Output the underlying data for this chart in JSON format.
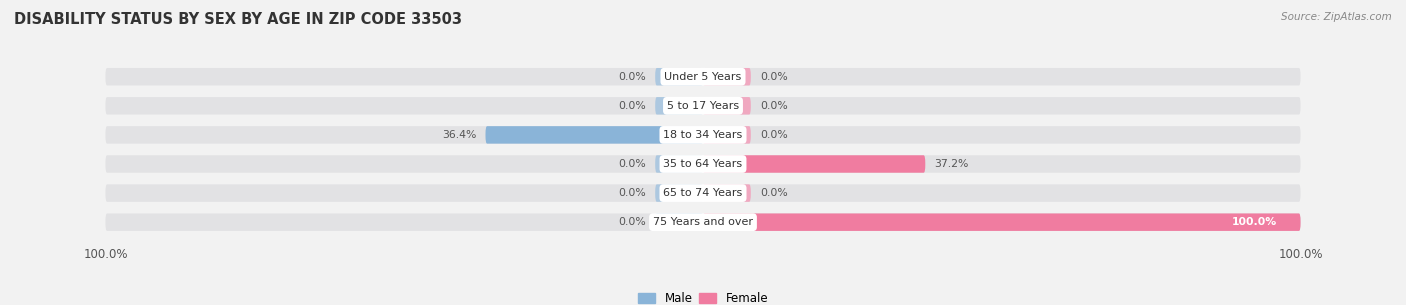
{
  "title": "DISABILITY STATUS BY SEX BY AGE IN ZIP CODE 33503",
  "source": "Source: ZipAtlas.com",
  "categories": [
    "Under 5 Years",
    "5 to 17 Years",
    "18 to 34 Years",
    "35 to 64 Years",
    "65 to 74 Years",
    "75 Years and over"
  ],
  "male_values": [
    0.0,
    0.0,
    36.4,
    0.0,
    0.0,
    0.0
  ],
  "female_values": [
    0.0,
    0.0,
    0.0,
    37.2,
    0.0,
    100.0
  ],
  "male_color": "#8ab4d8",
  "female_color": "#f07ca0",
  "male_default_color": "#adc8e0",
  "female_default_color": "#f0a8c0",
  "bg_color": "#f2f2f2",
  "bar_bg_color": "#e2e2e4",
  "bar_height": 0.6,
  "default_stub": 8.0,
  "xlim": 100,
  "title_fontsize": 10.5,
  "label_fontsize": 8.0,
  "tick_fontsize": 8.5,
  "value_fontsize": 7.8
}
